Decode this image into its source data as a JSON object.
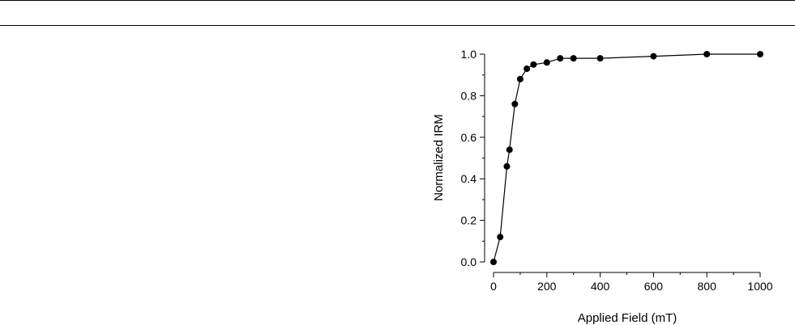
{
  "chart_data": {
    "type": "line",
    "title": "",
    "xlabel": "Applied Field (mT)",
    "ylabel": "Normalized IRM",
    "xlim": [
      0,
      1000
    ],
    "ylim": [
      0,
      1.0
    ],
    "xticks": [
      "0",
      "200",
      "400",
      "600",
      "800",
      "1000"
    ],
    "yticks": [
      "0.0",
      "0.2",
      "0.4",
      "0.6",
      "0.8",
      "1.0"
    ],
    "grid": false,
    "legend": "none",
    "marker": "filled-circle",
    "color": "#000000",
    "series": [
      {
        "x": [
          0,
          25,
          50,
          60,
          80,
          100,
          125,
          150,
          200,
          250,
          300,
          400,
          600,
          800,
          1000
        ],
        "y": [
          0.0,
          0.12,
          0.46,
          0.54,
          0.76,
          0.88,
          0.93,
          0.95,
          0.96,
          0.98,
          0.98,
          0.98,
          0.99,
          1.0,
          1.0
        ]
      }
    ]
  }
}
